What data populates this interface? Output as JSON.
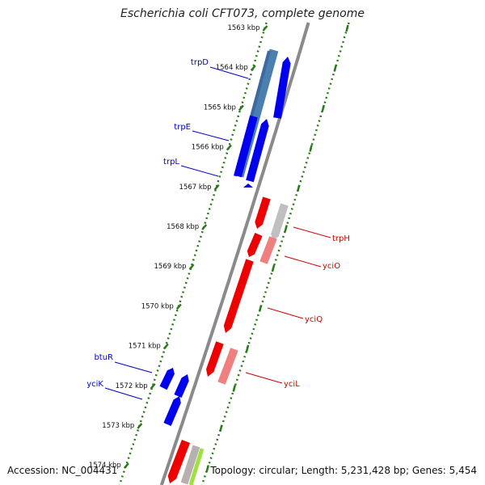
{
  "title": "Escherichia coli CFT073, complete genome",
  "footer": {
    "accession": "Accession: NC_004431",
    "topology": "Topology: circular; Length: 5,231,428 bp; Genes: 5,454"
  },
  "ticks": [
    "1563 kbp",
    "1564 kbp",
    "1565 kbp",
    "1566 kbp",
    "1567 kbp",
    "1568 kbp",
    "1569 kbp",
    "1570 kbp",
    "1571 kbp",
    "1572 kbp",
    "1573 kbp",
    "1574 kbp"
  ],
  "genes_left": [
    "trpD",
    "trpE",
    "trpL",
    "btuR",
    "yciK"
  ],
  "genes_right": [
    "trpH",
    "yciO",
    "yciQ",
    "yciL"
  ],
  "colors": {
    "forward": "#0000ee",
    "reverse": "#ee0000",
    "forward_shaded": "#4a7fb0",
    "reverse_shaded": "#f08080",
    "backbone": "#8a8a8a",
    "tick": "#2a7a1a"
  }
}
